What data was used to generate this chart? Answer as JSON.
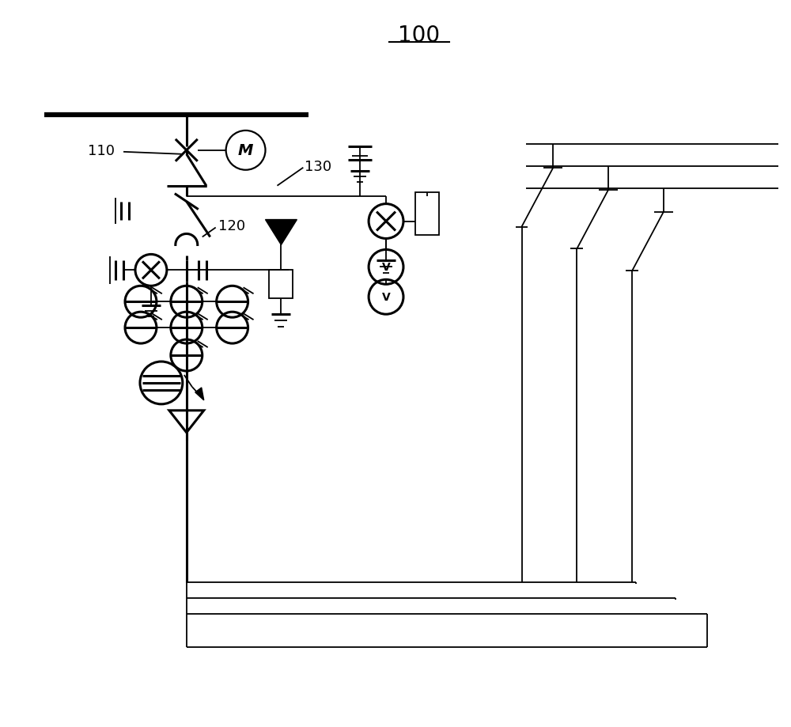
{
  "title": "100",
  "bg_color": "#ffffff",
  "line_color": "#000000",
  "label_110": "110",
  "label_120": "120",
  "label_130": "130",
  "lw_thick": 4.5,
  "lw_med": 2.2,
  "lw_thin": 1.3
}
